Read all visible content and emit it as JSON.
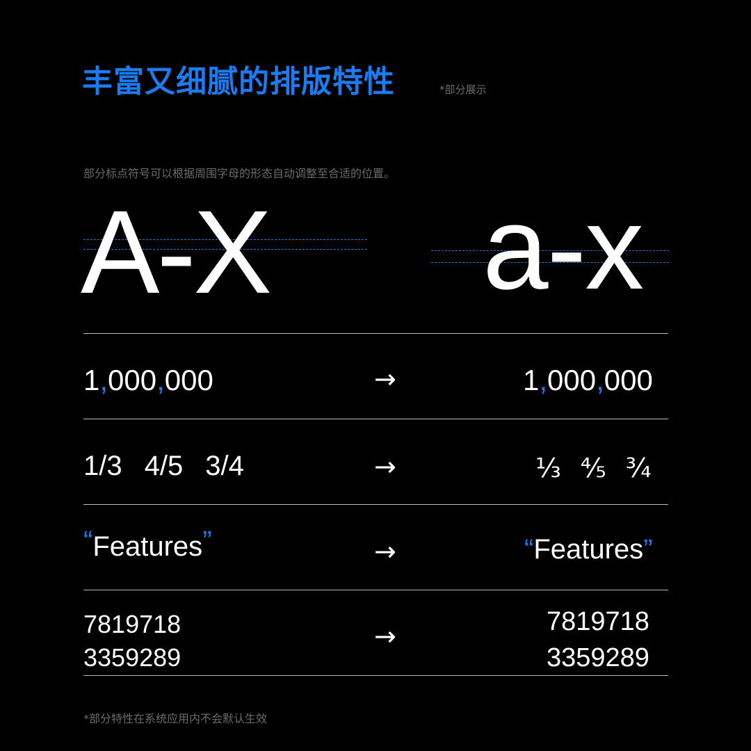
{
  "header": {
    "title": "丰富又细腻的排版特性",
    "note": "*部分展示"
  },
  "caption": "部分标点符号可以根据周围字母的形态自动调整至合适的位置。",
  "glyph_demo": {
    "upper": "A-X",
    "lower": "a-x"
  },
  "arrow_symbol": "→",
  "rows": {
    "thousands": {
      "before_parts": [
        "1",
        ",",
        "000",
        ",",
        "000"
      ],
      "after_parts": [
        "1",
        ",",
        "000",
        ",",
        "000"
      ]
    },
    "fractions": {
      "before": [
        "1/3",
        "4/5",
        "3/4"
      ],
      "after": [
        "⅓",
        "⅘",
        "¾"
      ]
    },
    "quotes": {
      "before": [
        "“",
        "Features",
        "”"
      ],
      "after": [
        "“",
        "Features",
        "”"
      ]
    },
    "figures": {
      "before": [
        "7819718",
        "3359289"
      ],
      "after": [
        "7819718",
        "3359289"
      ]
    }
  },
  "footnote": "*部分特性在系统应用内不会默认生效",
  "colors": {
    "accent": "#1a7cf0",
    "background": "#000000",
    "muted": "#6b6b6b"
  }
}
